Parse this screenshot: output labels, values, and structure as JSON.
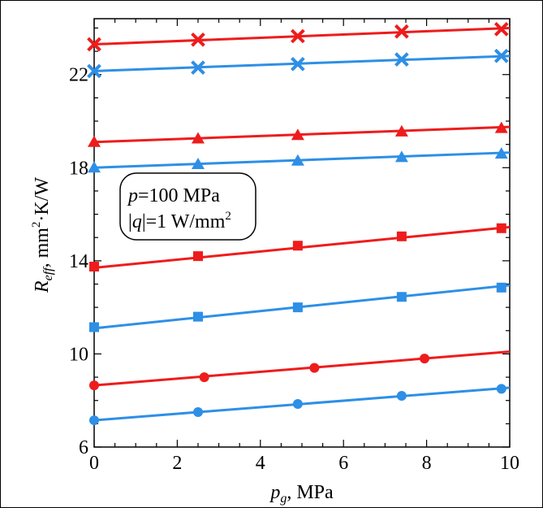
{
  "chart_data": {
    "type": "line",
    "title": "",
    "x": [
      0,
      2.5,
      5,
      7.5,
      10
    ],
    "xlim": [
      0,
      10
    ],
    "ylim": [
      6,
      24.4
    ],
    "xticks": [
      "0",
      "2",
      "4",
      "6",
      "8",
      "10"
    ],
    "yticks": [
      "6",
      "10",
      "14",
      "18",
      "22"
    ],
    "xlabel": {
      "main": "p",
      "sub": "g",
      "rest": ", MPa"
    },
    "ylabel": {
      "main": "R",
      "sub": "eff",
      "rest": ", mm",
      "sup": "2",
      "tail": "·K/W"
    },
    "grid": false,
    "annotation": {
      "line1_italic": "p",
      "line1_rest": "=100 MPa",
      "line2_pre": "|",
      "line2_italic": "q",
      "line2_mid": "|=1 W/mm",
      "line2_sup": "2"
    },
    "colors": {
      "red": "#ee1c1c",
      "blue": "#2e8fe6"
    },
    "series": [
      {
        "color": "red",
        "marker": "x",
        "fit": [
          23.3,
          24.0
        ],
        "points": [
          [
            0,
            23.3
          ],
          [
            2.5,
            23.5
          ],
          [
            4.9,
            23.65
          ],
          [
            7.4,
            23.85
          ],
          [
            9.8,
            23.95
          ]
        ]
      },
      {
        "color": "blue",
        "marker": "x",
        "fit": [
          22.15,
          22.8
        ],
        "points": [
          [
            0,
            22.15
          ],
          [
            2.5,
            22.3
          ],
          [
            4.9,
            22.45
          ],
          [
            7.4,
            22.65
          ],
          [
            9.8,
            22.8
          ]
        ]
      },
      {
        "color": "red",
        "marker": "triangle",
        "fit": [
          19.1,
          19.75
        ],
        "points": [
          [
            0,
            19.1
          ],
          [
            2.5,
            19.25
          ],
          [
            4.9,
            19.4
          ],
          [
            7.4,
            19.55
          ],
          [
            9.8,
            19.7
          ]
        ]
      },
      {
        "color": "blue",
        "marker": "triangle",
        "fit": [
          18.0,
          18.65
        ],
        "points": [
          [
            0,
            18.0
          ],
          [
            2.5,
            18.15
          ],
          [
            4.9,
            18.3
          ],
          [
            7.4,
            18.45
          ],
          [
            9.8,
            18.6
          ]
        ]
      },
      {
        "color": "red",
        "marker": "square",
        "fit": [
          13.7,
          15.45
        ],
        "points": [
          [
            0,
            13.75
          ],
          [
            2.5,
            14.2
          ],
          [
            4.9,
            14.65
          ],
          [
            7.4,
            15.05
          ],
          [
            9.8,
            15.4
          ]
        ]
      },
      {
        "color": "blue",
        "marker": "square",
        "fit": [
          11.1,
          12.95
        ],
        "points": [
          [
            0,
            11.15
          ],
          [
            2.5,
            11.6
          ],
          [
            4.9,
            12.0
          ],
          [
            7.4,
            12.45
          ],
          [
            9.8,
            12.85
          ]
        ]
      },
      {
        "color": "red",
        "marker": "circle",
        "fit": [
          8.65,
          10.1
        ],
        "points": [
          [
            0,
            8.65
          ],
          [
            2.65,
            9.0
          ],
          [
            5.3,
            9.4
          ],
          [
            7.95,
            9.8
          ]
        ]
      },
      {
        "color": "blue",
        "marker": "circle",
        "fit": [
          7.15,
          8.55
        ],
        "points": [
          [
            0,
            7.15
          ],
          [
            2.5,
            7.5
          ],
          [
            4.9,
            7.85
          ],
          [
            7.4,
            8.2
          ],
          [
            9.8,
            8.5
          ]
        ]
      }
    ]
  }
}
